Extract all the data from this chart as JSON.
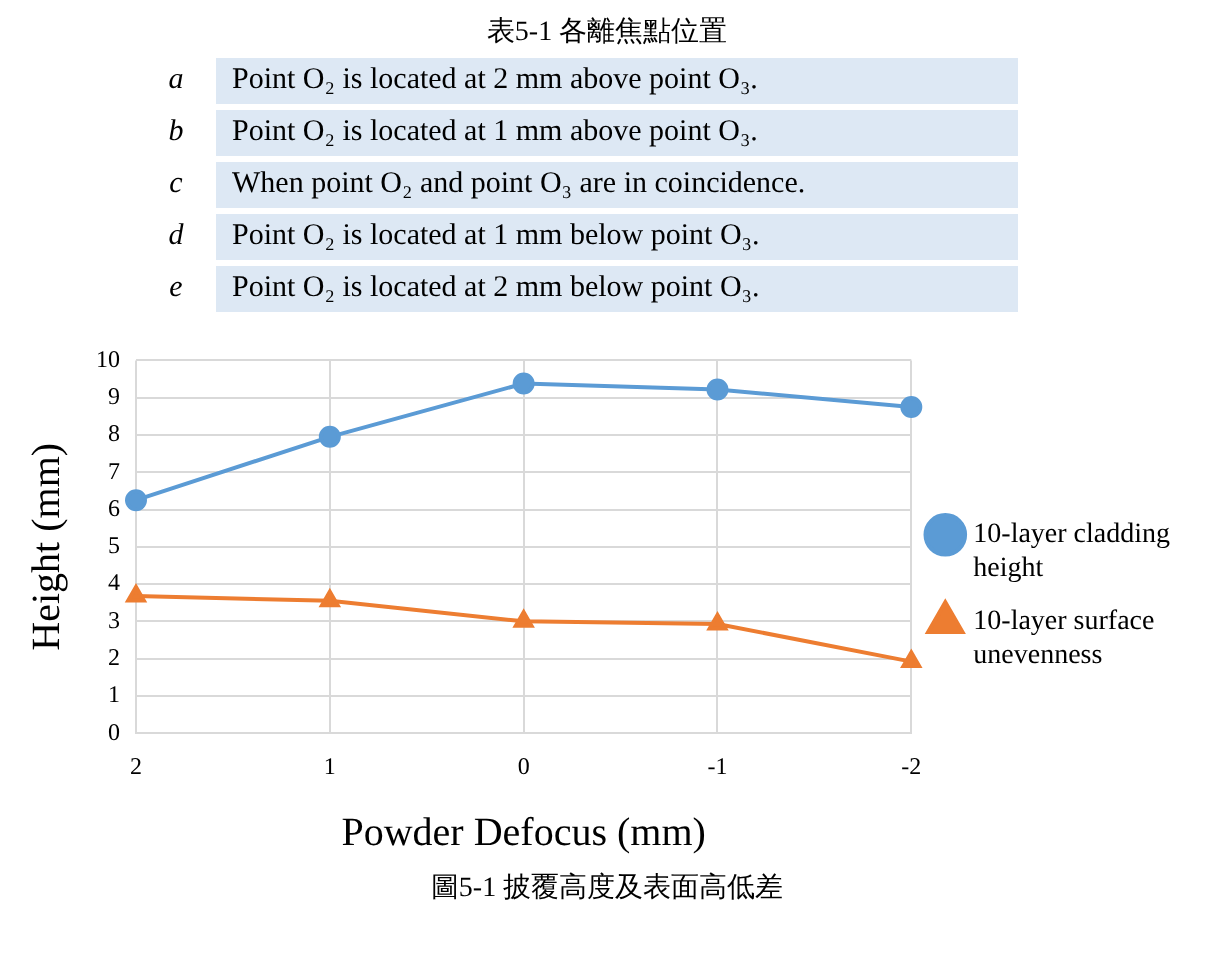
{
  "chart_data": {
    "type": "line",
    "xlabel": "Powder Defocus (mm)",
    "ylabel": "Height (mm)",
    "categories": [
      "2",
      "1",
      "0",
      "-1",
      "-2"
    ],
    "series": [
      {
        "name": "10-layer cladding height",
        "color": "#5b9bd5",
        "marker": "circle",
        "values": [
          6.25,
          7.95,
          9.38,
          9.22,
          8.75
        ]
      },
      {
        "name": "10-layer surface unevenness",
        "color": "#ed7d31",
        "marker": "triangle",
        "values": [
          3.68,
          3.55,
          3.0,
          2.93,
          1.92
        ]
      }
    ],
    "ylim": [
      0,
      10
    ],
    "yticks": [
      0,
      1,
      2,
      3,
      4,
      5,
      6,
      7,
      8,
      9,
      10
    ],
    "grid": true,
    "legend": "right",
    "line_style": "solid",
    "annotations": [
      "表5-1 各離焦點位置",
      "a",
      "Point O₂ is located at 2 mm above point O₃.",
      "b",
      "Point O₂ is located at 1 mm above point O₃.",
      "c",
      "When point O₂ and point O₃ are in coincidence.",
      "d",
      "Point O₂ is located at 1 mm below point O₃.",
      "e",
      "Point O₂ is located at 2 mm below point O₃.",
      "圖5-1 披覆高度及表面高低差"
    ]
  }
}
